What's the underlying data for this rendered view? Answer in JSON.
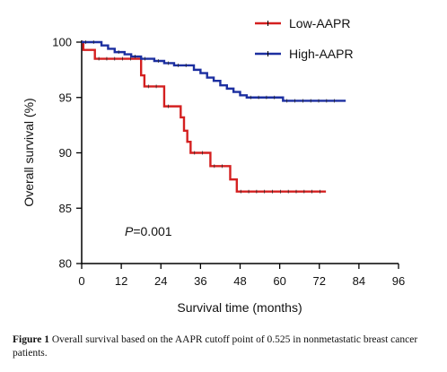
{
  "chart_data": {
    "type": "line",
    "subtype": "kaplan-meier step",
    "xlabel": "Survival time (months)",
    "ylabel": "Overall survival (%)",
    "xlim": [
      0,
      96
    ],
    "ylim": [
      80,
      100
    ],
    "xticks": [
      "0",
      "12",
      "24",
      "36",
      "48",
      "60",
      "72",
      "84",
      "96"
    ],
    "yticks": [
      "80",
      "85",
      "90",
      "95",
      "100"
    ],
    "grid": false,
    "legend_position": "top-right",
    "annotation": {
      "italic": "P",
      "rest": "=0.001"
    },
    "series": [
      {
        "name": "Low-AAPR",
        "color": "#d42020",
        "points": [
          [
            0,
            100
          ],
          [
            0.5,
            99.3
          ],
          [
            2,
            99.3
          ],
          [
            4,
            98.5
          ],
          [
            17,
            98.5
          ],
          [
            18,
            97.0
          ],
          [
            19,
            96.0
          ],
          [
            24,
            96.0
          ],
          [
            25,
            94.2
          ],
          [
            29,
            94.2
          ],
          [
            30,
            93.2
          ],
          [
            31,
            92.0
          ],
          [
            32,
            91.0
          ],
          [
            33,
            90.0
          ],
          [
            38,
            90.0
          ],
          [
            39,
            88.8
          ],
          [
            44,
            88.8
          ],
          [
            45,
            87.6
          ],
          [
            47,
            86.5
          ],
          [
            74,
            86.5
          ]
        ]
      },
      {
        "name": "High-AAPR",
        "color": "#1c2fa0",
        "points": [
          [
            0,
            100
          ],
          [
            5,
            100
          ],
          [
            6,
            99.7
          ],
          [
            8,
            99.4
          ],
          [
            10,
            99.1
          ],
          [
            13,
            98.9
          ],
          [
            15,
            98.7
          ],
          [
            18,
            98.5
          ],
          [
            22,
            98.3
          ],
          [
            25,
            98.1
          ],
          [
            28,
            97.9
          ],
          [
            33,
            97.9
          ],
          [
            34,
            97.5
          ],
          [
            36,
            97.2
          ],
          [
            38,
            96.8
          ],
          [
            40,
            96.5
          ],
          [
            42,
            96.1
          ],
          [
            44,
            95.8
          ],
          [
            46,
            95.5
          ],
          [
            48,
            95.2
          ],
          [
            50,
            95.0
          ],
          [
            60,
            95.0
          ],
          [
            61,
            94.7
          ],
          [
            80,
            94.7
          ]
        ]
      }
    ]
  },
  "caption": {
    "label": "Figure 1",
    "text": " Overall survival based on the AAPR cutoff point of 0.525 in nonmetastatic breast cancer patients."
  }
}
